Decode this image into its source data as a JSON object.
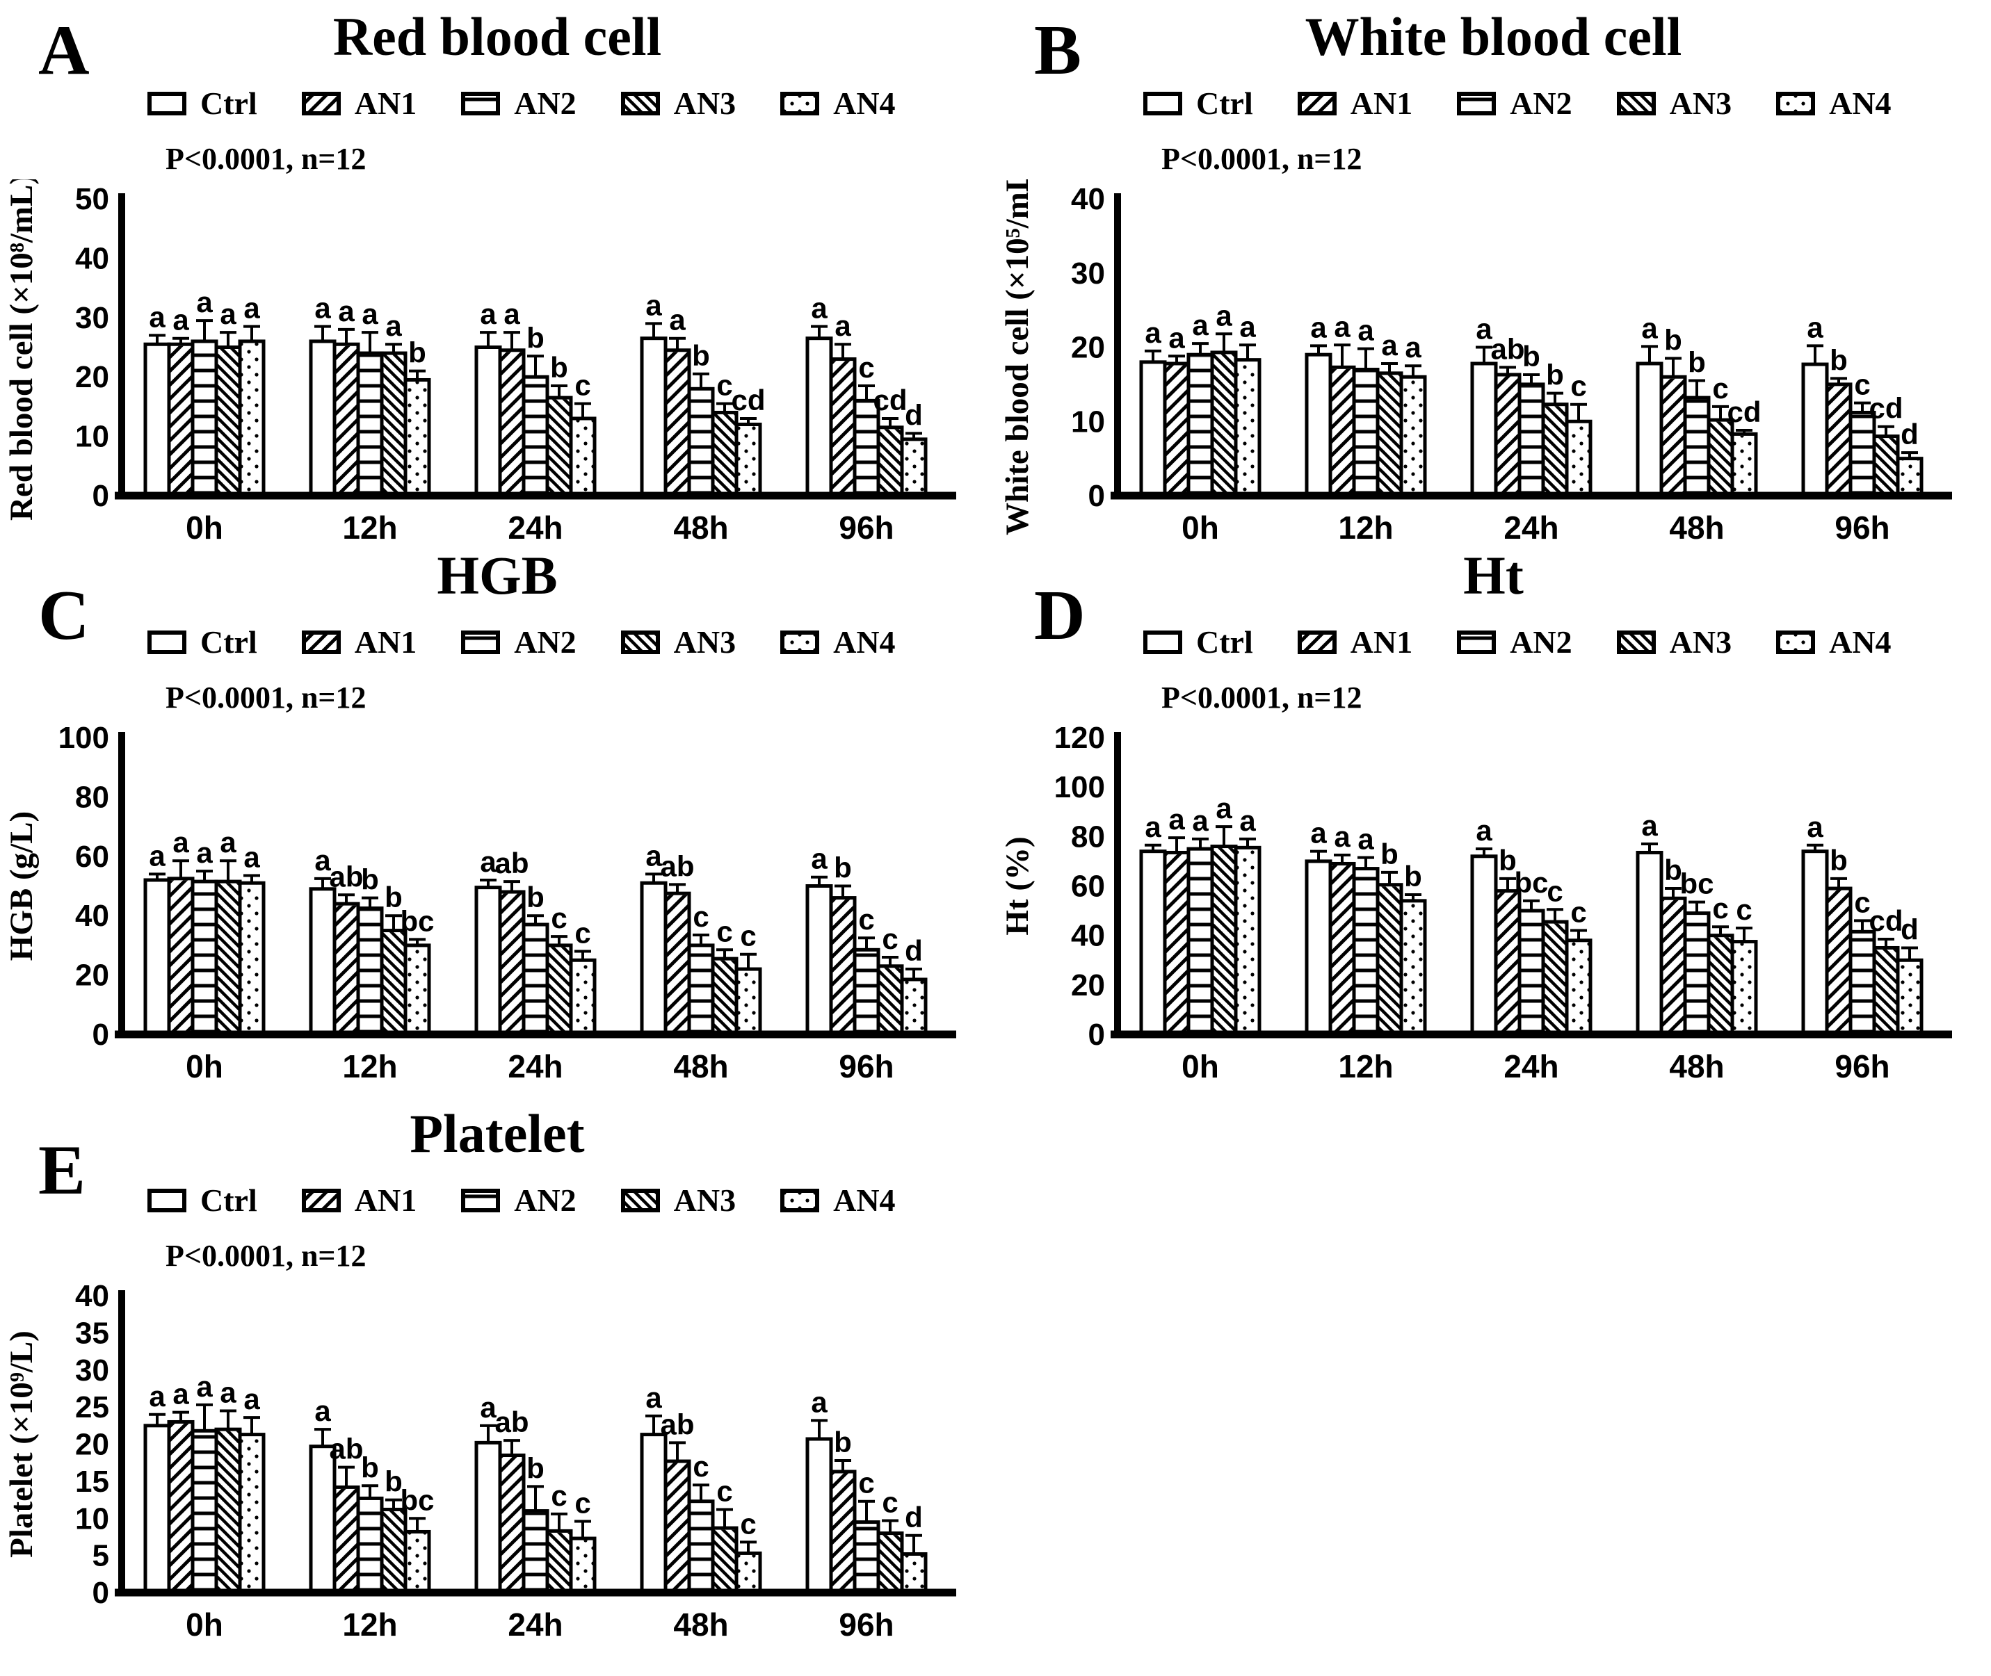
{
  "figure": {
    "panel_count": 5,
    "significance_note": "P<0.0001, n=12",
    "time_points": [
      "0h",
      "12h",
      "24h",
      "48h",
      "96h"
    ],
    "groups": [
      "Ctrl",
      "AN1",
      "AN2",
      "AN3",
      "AN4"
    ],
    "colors": {
      "bar_fill": "#ffffff",
      "ink": "#000000",
      "background": "#ffffff"
    }
  },
  "chart_data": [
    {
      "panel_letter": "A",
      "title": "Red blood cell",
      "p_annotation": "P<0.0001, n=12",
      "type": "bar",
      "xlabel": "",
      "ylabel": "Red blood cell (×10⁸/mL)",
      "ylim": [
        0,
        50
      ],
      "yticks": [
        0,
        10,
        20,
        30,
        40,
        50
      ],
      "grid": false,
      "legend_position": "top",
      "categories": [
        "0h",
        "12h",
        "24h",
        "48h",
        "96h"
      ],
      "series": [
        {
          "name": "Ctrl",
          "pattern": "solid-white",
          "values": [
            25.5,
            26,
            25,
            26.5,
            26.5
          ],
          "errors": [
            1.5,
            2.5,
            2.5,
            2.5,
            2
          ],
          "sig_letters": [
            "a",
            "a",
            "a",
            "a",
            "a"
          ]
        },
        {
          "name": "AN1",
          "pattern": "diagonal-hatch",
          "values": [
            25.5,
            25.5,
            24.5,
            24.5,
            23
          ],
          "errors": [
            1,
            2.5,
            3,
            2,
            2.5
          ],
          "sig_letters": [
            "a",
            "a",
            "a",
            "a",
            "a"
          ]
        },
        {
          "name": "AN2",
          "pattern": "horizontal-lines",
          "values": [
            26,
            24,
            20,
            18,
            16
          ],
          "errors": [
            3.5,
            3.5,
            3.5,
            2.5,
            2.5
          ],
          "sig_letters": [
            "a",
            "a",
            "b",
            "b",
            "c"
          ]
        },
        {
          "name": "AN3",
          "pattern": "diagonal-hatch-reverse",
          "values": [
            25,
            24,
            16.5,
            14,
            11.5
          ],
          "errors": [
            2.5,
            1.5,
            2,
            1.5,
            1.5
          ],
          "sig_letters": [
            "a",
            "a",
            "b",
            "c",
            "cd"
          ]
        },
        {
          "name": "AN4",
          "pattern": "dotted",
          "values": [
            26,
            19.5,
            13,
            12,
            9.5
          ],
          "errors": [
            2.5,
            1.5,
            2.5,
            1,
            1
          ],
          "sig_letters": [
            "a",
            "b",
            "c",
            "cd",
            "d"
          ]
        }
      ]
    },
    {
      "panel_letter": "B",
      "title": "White blood cell",
      "p_annotation": "P<0.0001, n=12",
      "type": "bar",
      "xlabel": "",
      "ylabel": "White blood cell (×10⁵/mL)",
      "ylim": [
        0,
        40
      ],
      "yticks": [
        0,
        10,
        20,
        30,
        40
      ],
      "grid": false,
      "legend_position": "top",
      "categories": [
        "0h",
        "12h",
        "24h",
        "48h",
        "96h"
      ],
      "series": [
        {
          "name": "Ctrl",
          "pattern": "solid-white",
          "values": [
            18,
            19,
            17.8,
            17.8,
            17.7
          ],
          "errors": [
            1.5,
            1.2,
            2.2,
            2.3,
            2.5
          ],
          "sig_letters": [
            "a",
            "a",
            "a",
            "a",
            "a"
          ]
        },
        {
          "name": "AN1",
          "pattern": "diagonal-hatch",
          "values": [
            17.8,
            17.3,
            16.3,
            16,
            15
          ],
          "errors": [
            1,
            3,
            1,
            2.5,
            0.8
          ],
          "sig_letters": [
            "a",
            "a",
            "ab",
            "b",
            "b"
          ]
        },
        {
          "name": "AN2",
          "pattern": "horizontal-lines",
          "values": [
            19,
            17,
            15,
            13.2,
            11.2
          ],
          "errors": [
            1.5,
            2.8,
            1.3,
            2.3,
            1.3
          ],
          "sig_letters": [
            "a",
            "a",
            "b",
            "b",
            "c"
          ]
        },
        {
          "name": "AN3",
          "pattern": "diagonal-hatch-reverse",
          "values": [
            19.3,
            16.5,
            12.3,
            10.2,
            8
          ],
          "errors": [
            2.5,
            1.3,
            1.5,
            1.8,
            1.3
          ],
          "sig_letters": [
            "a",
            "a",
            "b",
            "c",
            "cd"
          ]
        },
        {
          "name": "AN4",
          "pattern": "dotted",
          "values": [
            18.3,
            16,
            10,
            8.3,
            5
          ],
          "errors": [
            2,
            1.5,
            2.3,
            0.5,
            0.8
          ],
          "sig_letters": [
            "a",
            "a",
            "c",
            "cd",
            "d"
          ]
        }
      ]
    },
    {
      "panel_letter": "C",
      "title": "HGB",
      "p_annotation": "P<0.0001, n=12",
      "type": "bar",
      "xlabel": "",
      "ylabel": "HGB (g/L)",
      "ylim": [
        0,
        100
      ],
      "yticks": [
        0,
        20,
        40,
        60,
        80,
        100
      ],
      "grid": false,
      "legend_position": "top",
      "categories": [
        "0h",
        "12h",
        "24h",
        "48h",
        "96h"
      ],
      "series": [
        {
          "name": "Ctrl",
          "pattern": "solid-white",
          "values": [
            52,
            49,
            49.5,
            51,
            50
          ],
          "errors": [
            2,
            3.5,
            2.5,
            3,
            3
          ],
          "sig_letters": [
            "a",
            "a",
            "a",
            "a",
            "a"
          ]
        },
        {
          "name": "AN1",
          "pattern": "diagonal-hatch",
          "values": [
            52.5,
            44,
            48,
            47.5,
            46
          ],
          "errors": [
            6,
            3,
            3.5,
            3,
            4
          ],
          "sig_letters": [
            "a",
            "ab",
            "ab",
            "ab",
            "b"
          ]
        },
        {
          "name": "AN2",
          "pattern": "horizontal-lines",
          "values": [
            51.5,
            42.5,
            37,
            30,
            28.5
          ],
          "errors": [
            3.5,
            3.5,
            3,
            3.5,
            4
          ],
          "sig_letters": [
            "a",
            "b",
            "b",
            "c",
            "c"
          ]
        },
        {
          "name": "AN3",
          "pattern": "diagonal-hatch-reverse",
          "values": [
            51.5,
            35,
            30,
            25.5,
            23
          ],
          "errors": [
            7,
            5,
            3,
            3,
            3
          ],
          "sig_letters": [
            "a",
            "b",
            "c",
            "c",
            "c"
          ]
        },
        {
          "name": "AN4",
          "pattern": "dotted",
          "values": [
            51,
            30,
            25,
            22,
            18.5
          ],
          "errors": [
            2.5,
            2,
            3,
            5,
            3.5
          ],
          "sig_letters": [
            "a",
            "bc",
            "c",
            "c",
            "d"
          ]
        }
      ]
    },
    {
      "panel_letter": "D",
      "title": "Ht",
      "p_annotation": "P<0.0001, n=12",
      "type": "bar",
      "xlabel": "",
      "ylabel": "Ht (%)",
      "ylim": [
        0,
        120
      ],
      "yticks": [
        0,
        20,
        40,
        60,
        80,
        100,
        120
      ],
      "grid": false,
      "legend_position": "top",
      "categories": [
        "0h",
        "12h",
        "24h",
        "48h",
        "96h"
      ],
      "series": [
        {
          "name": "Ctrl",
          "pattern": "solid-white",
          "values": [
            74,
            70,
            72,
            73.5,
            74
          ],
          "errors": [
            2.5,
            4,
            3,
            3.5,
            2.5
          ],
          "sig_letters": [
            "a",
            "a",
            "a",
            "a",
            "a"
          ]
        },
        {
          "name": "AN1",
          "pattern": "diagonal-hatch",
          "values": [
            73.5,
            69,
            58,
            55,
            59
          ],
          "errors": [
            6,
            3.5,
            5,
            4,
            4
          ],
          "sig_letters": [
            "a",
            "a",
            "b",
            "b",
            "b"
          ]
        },
        {
          "name": "AN2",
          "pattern": "horizontal-lines",
          "values": [
            75,
            67,
            50,
            49,
            41.5
          ],
          "errors": [
            4,
            4.5,
            4,
            4.5,
            4.5
          ],
          "sig_letters": [
            "a",
            "a",
            "bc",
            "bc",
            "c"
          ]
        },
        {
          "name": "AN3",
          "pattern": "diagonal-hatch-reverse",
          "values": [
            76,
            60.5,
            45.5,
            40,
            35
          ],
          "errors": [
            8,
            5,
            5,
            3.5,
            3.5
          ],
          "sig_letters": [
            "a",
            "b",
            "c",
            "c",
            "cd"
          ]
        },
        {
          "name": "AN4",
          "pattern": "dotted",
          "values": [
            75.5,
            54,
            38,
            37.5,
            30
          ],
          "errors": [
            3.5,
            2.5,
            4,
            5.5,
            5
          ],
          "sig_letters": [
            "a",
            "b",
            "c",
            "c",
            "d"
          ]
        }
      ]
    },
    {
      "panel_letter": "E",
      "title": "Platelet",
      "p_annotation": "P<0.0001, n=12",
      "type": "bar",
      "xlabel": "",
      "ylabel": "Platelet (×10⁹/L)",
      "ylim": [
        0,
        40
      ],
      "yticks": [
        0,
        5,
        10,
        15,
        20,
        25,
        30,
        35,
        40
      ],
      "grid": false,
      "legend_position": "top",
      "categories": [
        "0h",
        "12h",
        "24h",
        "48h",
        "96h"
      ],
      "series": [
        {
          "name": "Ctrl",
          "pattern": "solid-white",
          "values": [
            22.5,
            19.7,
            20.2,
            21.3,
            20.7
          ],
          "errors": [
            1.5,
            2.3,
            2.3,
            2.5,
            2.5
          ],
          "sig_letters": [
            "a",
            "a",
            "a",
            "a",
            "a"
          ]
        },
        {
          "name": "AN1",
          "pattern": "diagonal-hatch",
          "values": [
            23,
            14.2,
            18.5,
            17.7,
            16.3
          ],
          "errors": [
            1.3,
            2.7,
            2,
            2.5,
            1.5
          ],
          "sig_letters": [
            "a",
            "ab",
            "ab",
            "ab",
            "b"
          ]
        },
        {
          "name": "AN2",
          "pattern": "horizontal-lines",
          "values": [
            21.8,
            12.7,
            11,
            12.3,
            9.5
          ],
          "errors": [
            3.5,
            1.7,
            3.3,
            2.2,
            2.8
          ],
          "sig_letters": [
            "a",
            "b",
            "b",
            "c",
            "c"
          ]
        },
        {
          "name": "AN3",
          "pattern": "diagonal-hatch-reverse",
          "values": [
            22,
            11.2,
            8.3,
            8.7,
            8
          ],
          "errors": [
            2.5,
            1.3,
            2.3,
            2.5,
            1.7
          ],
          "sig_letters": [
            "a",
            "b",
            "c",
            "c",
            "c"
          ]
        },
        {
          "name": "AN4",
          "pattern": "dotted",
          "values": [
            21.3,
            8.2,
            7.3,
            5.3,
            5.2
          ],
          "errors": [
            2.3,
            1.8,
            2.3,
            1.5,
            2.5
          ],
          "sig_letters": [
            "a",
            "bc",
            "c",
            "c",
            "d"
          ]
        }
      ]
    }
  ]
}
